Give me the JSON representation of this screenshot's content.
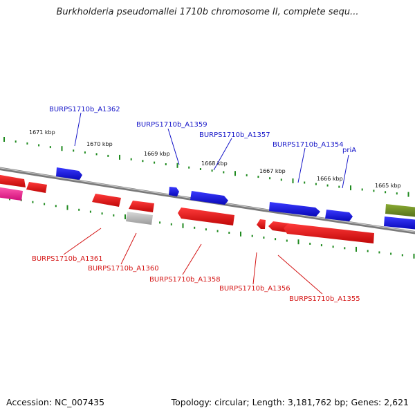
{
  "header": {
    "title": "Burkholderia pseudomallei 1710b chromosome II, complete sequ..."
  },
  "footer": {
    "accession": "Accession: NC_007435",
    "stats": "Topology: circular; Length: 3,181,762 bp; Genes: 2,621"
  },
  "colors": {
    "backbone": "#8a8a8a",
    "tick": "#1f8a1f",
    "forward_gene": "#1010e0",
    "reverse_gene": "#ee1010",
    "gray_feature": "#b8b8b8",
    "olive_feature": "#6f8f22",
    "pink_feature": "#ff2f9a",
    "label_forward": "#1414c8",
    "label_reverse": "#d41414"
  },
  "scale": {
    "ticks": [
      {
        "label": "1671 kbp"
      },
      {
        "label": "1670 kbp"
      },
      {
        "label": "1669 kbp"
      },
      {
        "label": "1668 kbp"
      },
      {
        "label": "1667 kbp"
      },
      {
        "label": "1666 kbp"
      },
      {
        "label": "1665 kbp"
      }
    ]
  },
  "gene_labels": [
    {
      "text": "BURPS1710b_A1362",
      "strand": "forward"
    },
    {
      "text": "BURPS1710b_A1359",
      "strand": "forward"
    },
    {
      "text": "BURPS1710b_A1357",
      "strand": "forward"
    },
    {
      "text": "BURPS1710b_A1354",
      "strand": "forward"
    },
    {
      "text": "priA",
      "strand": "forward"
    },
    {
      "text": "BURPS1710b_A1361",
      "strand": "reverse"
    },
    {
      "text": "BURPS1710b_A1360",
      "strand": "reverse"
    },
    {
      "text": "BURPS1710b_A1358",
      "strand": "reverse"
    },
    {
      "text": "BURPS1710b_A1356",
      "strand": "reverse"
    },
    {
      "text": "BURPS1710b_A1355",
      "strand": "reverse"
    }
  ]
}
